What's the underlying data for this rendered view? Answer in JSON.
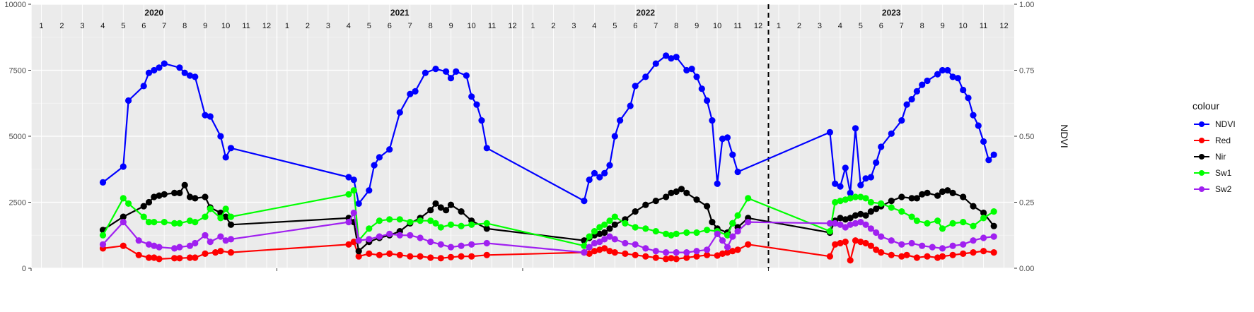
{
  "chart_data": {
    "type": "line",
    "ylim_left": [
      0,
      10000
    ],
    "yticks_left": [
      0,
      2500,
      5000,
      7500,
      10000
    ],
    "ylim_right": [
      0,
      1
    ],
    "yticks_right": [
      "0.00",
      "0.25",
      "0.50",
      "0.75",
      "1.00"
    ],
    "right_axis_label": "NDVI",
    "x_start": 2020.0,
    "x_end": 2024.0,
    "years": [
      "2020",
      "2021",
      "2022",
      "2023"
    ],
    "months": [
      "1",
      "2",
      "3",
      "4",
      "5",
      "6",
      "7",
      "8",
      "9",
      "10",
      "11",
      "12"
    ],
    "vline_x": 2023.0,
    "legend_title": "colour",
    "series": [
      {
        "name": "NDVI",
        "color": "#0000ff",
        "x": [
          2020.292,
          2020.375,
          2020.396,
          2020.458,
          2020.479,
          2020.5,
          2020.521,
          2020.542,
          2020.604,
          2020.625,
          2020.646,
          2020.667,
          2020.708,
          2020.729,
          2020.771,
          2020.792,
          2020.813,
          2021.292,
          2021.313,
          2021.333,
          2021.375,
          2021.396,
          2021.417,
          2021.458,
          2021.5,
          2021.542,
          2021.563,
          2021.604,
          2021.646,
          2021.688,
          2021.708,
          2021.729,
          2021.771,
          2021.792,
          2021.813,
          2021.833,
          2021.854,
          2022.25,
          2022.271,
          2022.292,
          2022.313,
          2022.333,
          2022.354,
          2022.375,
          2022.396,
          2022.438,
          2022.458,
          2022.5,
          2022.542,
          2022.583,
          2022.604,
          2022.625,
          2022.667,
          2022.688,
          2022.708,
          2022.729,
          2022.75,
          2022.771,
          2022.792,
          2022.813,
          2022.833,
          2022.854,
          2022.875,
          2023.25,
          2023.271,
          2023.292,
          2023.313,
          2023.333,
          2023.354,
          2023.375,
          2023.396,
          2023.417,
          2023.438,
          2023.458,
          2023.5,
          2023.542,
          2023.563,
          2023.583,
          2023.604,
          2023.625,
          2023.646,
          2023.688,
          2023.708,
          2023.729,
          2023.75,
          2023.771,
          2023.792,
          2023.813,
          2023.833,
          2023.854,
          2023.875,
          2023.896,
          2023.917
        ],
        "y": [
          3250,
          3850,
          6350,
          6900,
          7400,
          7500,
          7600,
          7750,
          7600,
          7400,
          7300,
          7250,
          5800,
          5750,
          5000,
          4200,
          4550,
          3450,
          3350,
          2450,
          2950,
          3900,
          4200,
          4500,
          5900,
          6600,
          6700,
          7400,
          7550,
          7450,
          7200,
          7450,
          7300,
          6500,
          6200,
          5600,
          4550,
          2550,
          3350,
          3600,
          3450,
          3600,
          3900,
          5000,
          5600,
          6150,
          6900,
          7250,
          7750,
          8050,
          7950,
          8000,
          7500,
          7550,
          7250,
          6800,
          6350,
          5600,
          3200,
          4900,
          4950,
          4300,
          3650,
          5150,
          3200,
          3100,
          3800,
          2850,
          5300,
          3150,
          3400,
          3450,
          4000,
          4600,
          5100,
          5600,
          6200,
          6400,
          6700,
          6950,
          7100,
          7350,
          7500,
          7500,
          7250,
          7200,
          6750,
          6450,
          5800,
          5400,
          4800,
          4100,
          4300
        ]
      },
      {
        "name": "Red",
        "color": "#ff0000",
        "x": [
          2020.292,
          2020.375,
          2020.438,
          2020.479,
          2020.5,
          2020.521,
          2020.583,
          2020.604,
          2020.646,
          2020.667,
          2020.708,
          2020.75,
          2020.771,
          2020.813,
          2021.292,
          2021.313,
          2021.333,
          2021.375,
          2021.417,
          2021.458,
          2021.5,
          2021.542,
          2021.583,
          2021.625,
          2021.667,
          2021.708,
          2021.75,
          2021.792,
          2021.854,
          2022.25,
          2022.271,
          2022.292,
          2022.313,
          2022.333,
          2022.354,
          2022.375,
          2022.417,
          2022.458,
          2022.5,
          2022.542,
          2022.583,
          2022.604,
          2022.625,
          2022.667,
          2022.708,
          2022.75,
          2022.792,
          2022.813,
          2022.833,
          2022.854,
          2022.875,
          2022.917,
          2023.25,
          2023.271,
          2023.292,
          2023.313,
          2023.333,
          2023.354,
          2023.375,
          2023.396,
          2023.417,
          2023.438,
          2023.458,
          2023.5,
          2023.542,
          2023.563,
          2023.604,
          2023.646,
          2023.688,
          2023.708,
          2023.75,
          2023.792,
          2023.833,
          2023.875,
          2023.917
        ],
        "y": [
          750,
          850,
          500,
          400,
          400,
          350,
          380,
          380,
          400,
          400,
          550,
          600,
          650,
          600,
          900,
          1000,
          450,
          550,
          500,
          550,
          500,
          450,
          450,
          400,
          380,
          420,
          450,
          450,
          500,
          600,
          550,
          650,
          700,
          750,
          650,
          600,
          550,
          500,
          450,
          400,
          350,
          380,
          350,
          400,
          450,
          500,
          480,
          550,
          600,
          650,
          700,
          900,
          450,
          900,
          950,
          1000,
          300,
          1050,
          1000,
          950,
          850,
          700,
          600,
          500,
          450,
          500,
          400,
          450,
          400,
          450,
          500,
          550,
          600,
          650,
          600
        ]
      },
      {
        "name": "Nir",
        "color": "#000000",
        "x": [
          2020.292,
          2020.375,
          2020.458,
          2020.479,
          2020.5,
          2020.521,
          2020.542,
          2020.583,
          2020.604,
          2020.625,
          2020.646,
          2020.667,
          2020.708,
          2020.729,
          2020.771,
          2020.792,
          2020.813,
          2021.292,
          2021.313,
          2021.333,
          2021.375,
          2021.417,
          2021.458,
          2021.5,
          2021.542,
          2021.583,
          2021.625,
          2021.646,
          2021.667,
          2021.688,
          2021.708,
          2021.75,
          2021.792,
          2021.854,
          2022.25,
          2022.271,
          2022.292,
          2022.313,
          2022.333,
          2022.354,
          2022.375,
          2022.417,
          2022.458,
          2022.5,
          2022.542,
          2022.583,
          2022.604,
          2022.625,
          2022.646,
          2022.667,
          2022.708,
          2022.75,
          2022.771,
          2022.792,
          2022.833,
          2022.854,
          2022.875,
          2022.917,
          2023.25,
          2023.271,
          2023.292,
          2023.313,
          2023.333,
          2023.354,
          2023.375,
          2023.396,
          2023.417,
          2023.438,
          2023.458,
          2023.5,
          2023.542,
          2023.583,
          2023.604,
          2023.625,
          2023.646,
          2023.688,
          2023.708,
          2023.729,
          2023.75,
          2023.792,
          2023.833,
          2023.875,
          2023.917
        ],
        "y": [
          1450,
          1950,
          2350,
          2500,
          2700,
          2750,
          2800,
          2850,
          2850,
          3150,
          2700,
          2650,
          2700,
          2300,
          2100,
          1950,
          1650,
          1900,
          1750,
          650,
          1000,
          1150,
          1250,
          1400,
          1700,
          1900,
          2200,
          2450,
          2300,
          2200,
          2400,
          2150,
          1800,
          1500,
          1050,
          1150,
          1250,
          1300,
          1350,
          1500,
          1650,
          1850,
          2150,
          2400,
          2550,
          2700,
          2850,
          2900,
          3000,
          2850,
          2600,
          2350,
          1750,
          1500,
          1350,
          1700,
          1550,
          1900,
          1350,
          1800,
          1900,
          1850,
          1900,
          2000,
          2050,
          2000,
          2150,
          2250,
          2350,
          2550,
          2700,
          2650,
          2650,
          2800,
          2850,
          2750,
          2900,
          2950,
          2850,
          2700,
          2350,
          2100,
          1600
        ]
      },
      {
        "name": "Sw1",
        "color": "#00ff00",
        "x": [
          2020.292,
          2020.375,
          2020.396,
          2020.458,
          2020.479,
          2020.5,
          2020.542,
          2020.583,
          2020.604,
          2020.646,
          2020.667,
          2020.708,
          2020.729,
          2020.771,
          2020.792,
          2020.813,
          2021.292,
          2021.313,
          2021.333,
          2021.375,
          2021.417,
          2021.458,
          2021.5,
          2021.542,
          2021.583,
          2021.625,
          2021.646,
          2021.667,
          2021.708,
          2021.75,
          2021.792,
          2021.854,
          2022.25,
          2022.271,
          2022.292,
          2022.313,
          2022.333,
          2022.354,
          2022.375,
          2022.417,
          2022.458,
          2022.5,
          2022.542,
          2022.583,
          2022.604,
          2022.625,
          2022.667,
          2022.708,
          2022.75,
          2022.792,
          2022.833,
          2022.854,
          2022.875,
          2022.917,
          2023.25,
          2023.271,
          2023.292,
          2023.313,
          2023.333,
          2023.354,
          2023.375,
          2023.396,
          2023.417,
          2023.458,
          2023.5,
          2023.542,
          2023.583,
          2023.604,
          2023.646,
          2023.688,
          2023.708,
          2023.75,
          2023.792,
          2023.833,
          2023.875,
          2023.917
        ],
        "y": [
          1250,
          2650,
          2450,
          1950,
          1750,
          1750,
          1750,
          1700,
          1700,
          1800,
          1750,
          1950,
          2250,
          1900,
          2250,
          1950,
          2800,
          2950,
          1050,
          1500,
          1800,
          1850,
          1850,
          1750,
          1800,
          1800,
          1700,
          1550,
          1650,
          1600,
          1650,
          1700,
          850,
          1200,
          1400,
          1550,
          1650,
          1800,
          1950,
          1700,
          1550,
          1500,
          1400,
          1300,
          1250,
          1300,
          1350,
          1350,
          1450,
          1400,
          1250,
          1700,
          2000,
          2650,
          1400,
          2500,
          2550,
          2600,
          2650,
          2700,
          2700,
          2650,
          2500,
          2450,
          2300,
          2150,
          1950,
          1800,
          1700,
          1800,
          1500,
          1700,
          1750,
          1600,
          1900,
          2150
        ]
      },
      {
        "name": "Sw2",
        "color": "#a020f0",
        "x": [
          2020.292,
          2020.375,
          2020.438,
          2020.479,
          2020.5,
          2020.521,
          2020.583,
          2020.604,
          2020.646,
          2020.667,
          2020.708,
          2020.729,
          2020.771,
          2020.792,
          2020.813,
          2021.292,
          2021.313,
          2021.333,
          2021.375,
          2021.417,
          2021.458,
          2021.5,
          2021.542,
          2021.583,
          2021.625,
          2021.667,
          2021.708,
          2021.75,
          2021.792,
          2021.854,
          2022.25,
          2022.271,
          2022.292,
          2022.313,
          2022.333,
          2022.354,
          2022.375,
          2022.417,
          2022.458,
          2022.5,
          2022.542,
          2022.583,
          2022.625,
          2022.667,
          2022.708,
          2022.75,
          2022.792,
          2022.813,
          2022.833,
          2022.854,
          2022.875,
          2022.917,
          2023.25,
          2023.271,
          2023.292,
          2023.313,
          2023.333,
          2023.354,
          2023.375,
          2023.396,
          2023.417,
          2023.438,
          2023.458,
          2023.5,
          2023.542,
          2023.583,
          2023.625,
          2023.667,
          2023.708,
          2023.75,
          2023.792,
          2023.833,
          2023.875,
          2023.917
        ],
        "y": [
          900,
          1750,
          1050,
          900,
          850,
          800,
          750,
          800,
          850,
          950,
          1250,
          1000,
          1200,
          1050,
          1100,
          1750,
          2100,
          1050,
          1100,
          1200,
          1300,
          1250,
          1250,
          1150,
          1000,
          900,
          800,
          850,
          900,
          950,
          600,
          800,
          950,
          1000,
          1100,
          1200,
          1100,
          950,
          900,
          750,
          650,
          600,
          600,
          600,
          650,
          700,
          1300,
          1050,
          800,
          1200,
          1400,
          1750,
          1700,
          1700,
          1650,
          1550,
          1650,
          1700,
          1750,
          1650,
          1500,
          1350,
          1200,
          1050,
          900,
          950,
          850,
          800,
          750,
          850,
          900,
          1050,
          1150,
          1200
        ]
      }
    ]
  }
}
